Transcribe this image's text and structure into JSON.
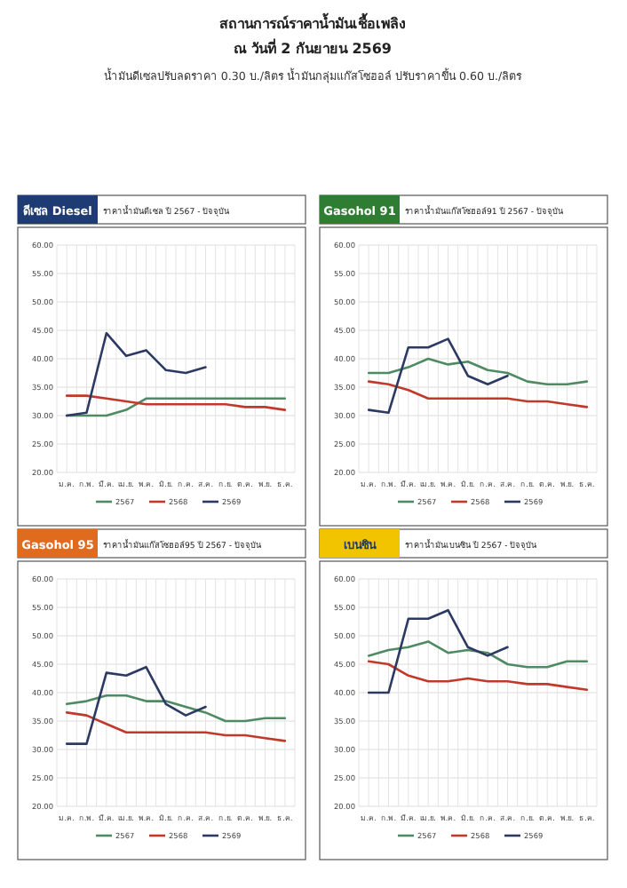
{
  "chart_data": [
    {
      "type": "other",
      "title": "สถานการณ์ราคาน้ำมันเชื้อเพลิง",
      "subtitle": "ณ วันที่ 2 กันยายน 2569",
      "annotations": [
        "น้ำมันดีเซลปรับลดราคา 0.30 บ./ลิตร น้ำมันกลุ่มแก๊สโซฮอล์ ปรับราคาขึ้น 0.60 บ./ลิตร"
      ]
    },
    {
      "type": "line",
      "subtitle": "ดีเซล Diesel",
      "title": "ราคาน้ำมันดีเซล ปี 2567 - ปัจจุบัน",
      "categories": [
        "ม.ค.",
        "ก.พ.",
        "มี.ค.",
        "เม.ย.",
        "พ.ค.",
        "มิ.ย.",
        "ก.ค.",
        "ส.ค.",
        "ก.ย.",
        "ต.ค.",
        "พ.ย.",
        "ธ.ค."
      ],
      "ylim": [
        20,
        60
      ],
      "yticks": [
        {
          "value": 20,
          "label": "20.00"
        },
        {
          "value": 25,
          "label": "25.00"
        },
        {
          "value": 30,
          "label": "30.00"
        },
        {
          "value": 35,
          "label": "35.00"
        },
        {
          "value": 40,
          "label": "40.00"
        },
        {
          "value": 45,
          "label": "45.00"
        },
        {
          "value": 50,
          "label": "50.00"
        },
        {
          "value": 55,
          "label": "55.00"
        },
        {
          "value": 60,
          "label": "60.00"
        }
      ],
      "grid": true,
      "legend": "bottom",
      "marker": "none",
      "series": [
        {
          "name": "2567",
          "color": "#4e8a62",
          "values": [
            30,
            30,
            30,
            31,
            33,
            33,
            33,
            33,
            33,
            33,
            33,
            33
          ]
        },
        {
          "name": "2568",
          "color": "#c0392b",
          "values": [
            33.5,
            33.5,
            33,
            32.5,
            32,
            32,
            32,
            32,
            32,
            31.5,
            31.5,
            31
          ]
        },
        {
          "name": "2569",
          "color": "#2c3a63",
          "values": [
            30,
            30.5,
            44.5,
            40.5,
            41.5,
            38,
            37.5,
            38.5,
            null,
            null,
            null,
            null
          ]
        }
      ]
    },
    {
      "type": "line",
      "subtitle": "Gasohol 91",
      "title": "ราคาน้ำมันแก๊สโซฮอล์91 ปี 2567 - ปัจจุบัน",
      "categories": [
        "ม.ค.",
        "ก.พ.",
        "มี.ค.",
        "เม.ย.",
        "พ.ค.",
        "มิ.ย.",
        "ก.ค.",
        "ส.ค.",
        "ก.ย.",
        "ต.ค.",
        "พ.ย.",
        "ธ.ค."
      ],
      "ylim": [
        20,
        60
      ],
      "yticks": [
        {
          "value": 20,
          "label": "20.00"
        },
        {
          "value": 25,
          "label": "25.00"
        },
        {
          "value": 30,
          "label": "30.00"
        },
        {
          "value": 35,
          "label": "35.00"
        },
        {
          "value": 40,
          "label": "40.00"
        },
        {
          "value": 45,
          "label": "45.00"
        },
        {
          "value": 50,
          "label": "50.00"
        },
        {
          "value": 55,
          "label": "55.00"
        },
        {
          "value": 60,
          "label": "60.00"
        }
      ],
      "grid": true,
      "legend": "bottom",
      "marker": "none",
      "series": [
        {
          "name": "2567",
          "color": "#4e8a62",
          "values": [
            37.5,
            37.5,
            38.5,
            40,
            39,
            39.5,
            38,
            37.5,
            36,
            35.5,
            35.5,
            36
          ]
        },
        {
          "name": "2568",
          "color": "#c0392b",
          "values": [
            36,
            35.5,
            34.5,
            33,
            33,
            33,
            33,
            33,
            32.5,
            32.5,
            32,
            31.5
          ]
        },
        {
          "name": "2569",
          "color": "#2c3a63",
          "values": [
            31,
            30.5,
            42,
            42,
            43.5,
            37,
            35.5,
            37,
            null,
            null,
            null,
            null
          ]
        }
      ]
    },
    {
      "type": "line",
      "subtitle": "Gasohol 95",
      "title": "ราคาน้ำมันแก๊สโซฮอล์95 ปี 2567 - ปัจจุบัน",
      "categories": [
        "ม.ค.",
        "ก.พ.",
        "มี.ค.",
        "เม.ย.",
        "พ.ค.",
        "มิ.ย.",
        "ก.ค.",
        "ส.ค.",
        "ก.ย.",
        "ต.ค.",
        "พ.ย.",
        "ธ.ค."
      ],
      "ylim": [
        20,
        60
      ],
      "yticks": [
        {
          "value": 20,
          "label": "20.00"
        },
        {
          "value": 25,
          "label": "25.00"
        },
        {
          "value": 30,
          "label": "30.00"
        },
        {
          "value": 35,
          "label": "35.00"
        },
        {
          "value": 40,
          "label": "40.00"
        },
        {
          "value": 45,
          "label": "45.00"
        },
        {
          "value": 50,
          "label": "50.00"
        },
        {
          "value": 55,
          "label": "55.00"
        },
        {
          "value": 60,
          "label": "60.00"
        }
      ],
      "grid": true,
      "legend": "bottom",
      "marker": "none",
      "series": [
        {
          "name": "2567",
          "color": "#4e8a62",
          "values": [
            38,
            38.5,
            39.5,
            39.5,
            38.5,
            38.5,
            37.5,
            36.5,
            35,
            35,
            35.5,
            35.5
          ]
        },
        {
          "name": "2568",
          "color": "#c0392b",
          "values": [
            36.5,
            36,
            34.5,
            33,
            33,
            33,
            33,
            33,
            32.5,
            32.5,
            32,
            31.5
          ]
        },
        {
          "name": "2569",
          "color": "#2c3a63",
          "values": [
            31,
            31,
            43.5,
            43,
            44.5,
            38,
            36,
            37.5,
            null,
            null,
            null,
            null
          ]
        }
      ]
    },
    {
      "type": "line",
      "subtitle": "เบนซิน",
      "title": "ราคาน้ำมันเบนซิน ปี 2567 - ปัจจุบัน",
      "categories": [
        "ม.ค.",
        "ก.พ.",
        "มี.ค.",
        "เม.ย.",
        "พ.ค.",
        "มิ.ย.",
        "ก.ค.",
        "ส.ค.",
        "ก.ย.",
        "ต.ค.",
        "พ.ย.",
        "ธ.ค."
      ],
      "ylim": [
        20,
        60
      ],
      "yticks": [
        {
          "value": 20,
          "label": "20.00"
        },
        {
          "value": 25,
          "label": "25.00"
        },
        {
          "value": 30,
          "label": "30.00"
        },
        {
          "value": 35,
          "label": "35.00"
        },
        {
          "value": 40,
          "label": "40.00"
        },
        {
          "value": 45,
          "label": "45.00"
        },
        {
          "value": 50,
          "label": "50.00"
        },
        {
          "value": 55,
          "label": "55.00"
        },
        {
          "value": 60,
          "label": "60.00"
        }
      ],
      "grid": true,
      "legend": "bottom",
      "marker": "none",
      "series": [
        {
          "name": "2567",
          "color": "#4e8a62",
          "values": [
            46.5,
            47.5,
            48,
            49,
            47,
            47.5,
            47,
            45,
            44.5,
            44.5,
            45.5,
            45.5
          ]
        },
        {
          "name": "2568",
          "color": "#c0392b",
          "values": [
            45.5,
            45,
            43,
            42,
            42,
            42.5,
            42,
            42,
            41.5,
            41.5,
            41,
            40.5
          ]
        },
        {
          "name": "2569",
          "color": "#2c3a63",
          "values": [
            40,
            40,
            53,
            53,
            54.5,
            48,
            46.5,
            48,
            null,
            null,
            null,
            null
          ]
        }
      ]
    }
  ]
}
